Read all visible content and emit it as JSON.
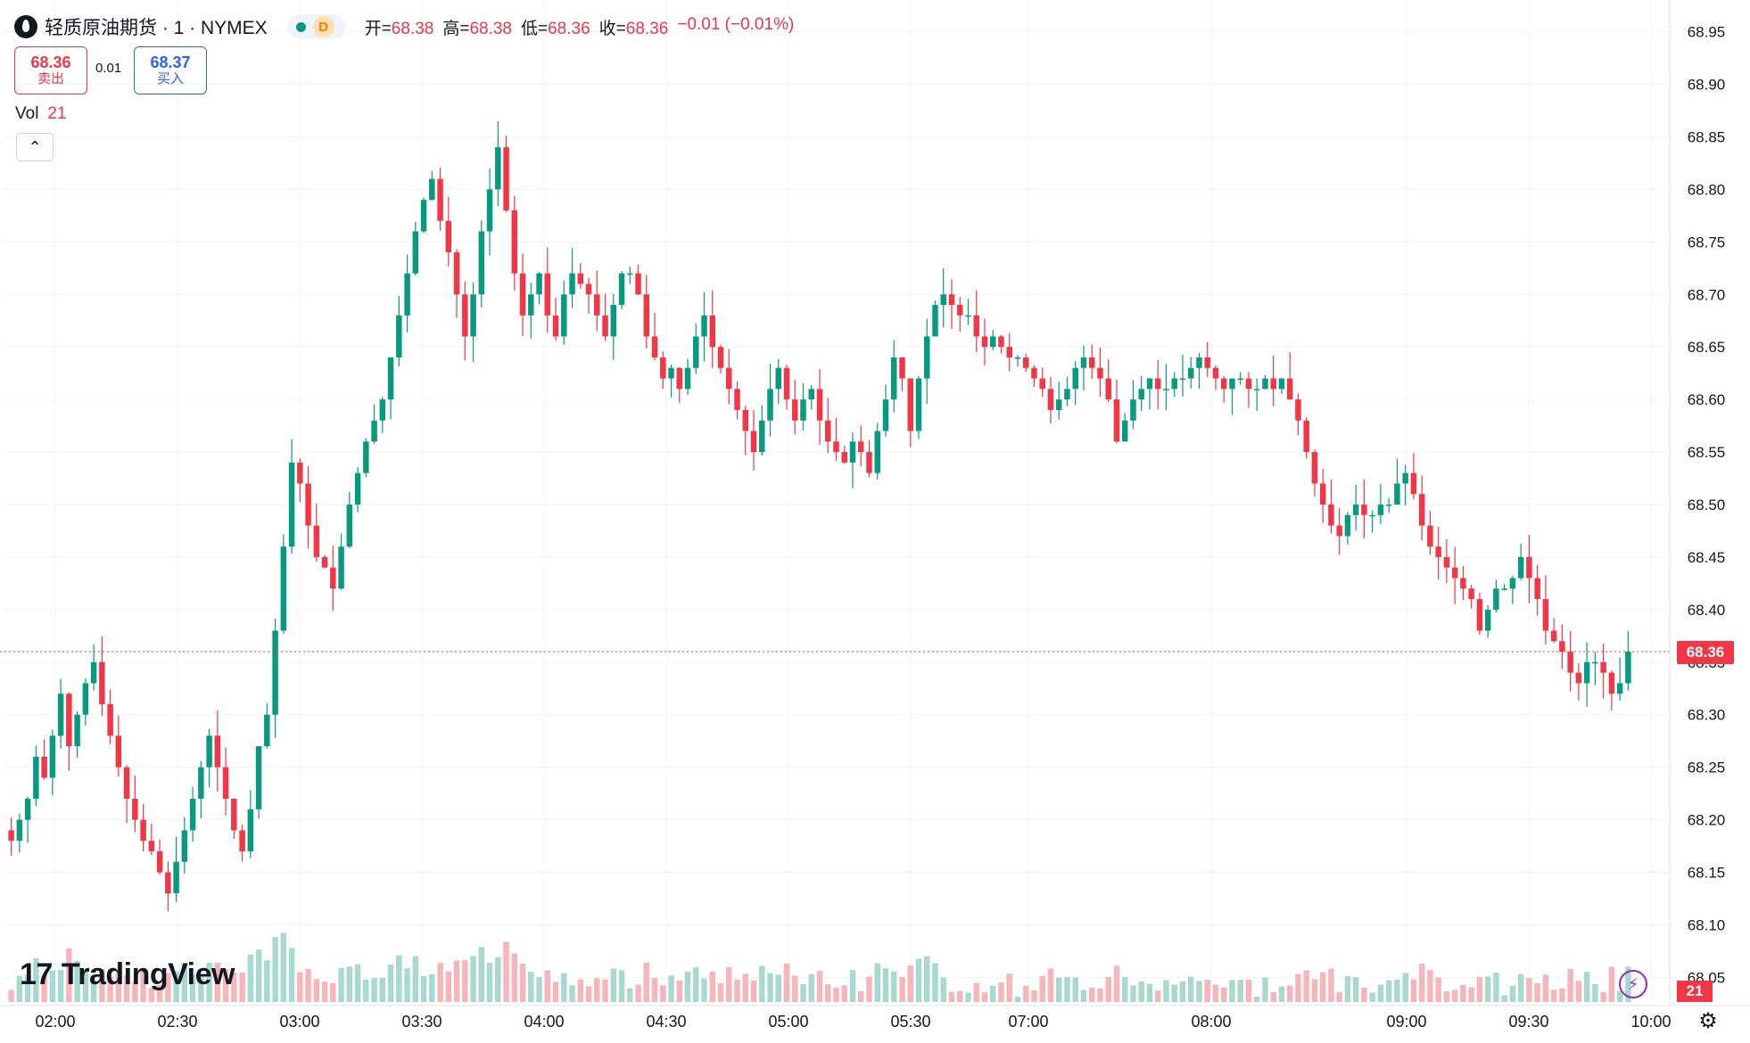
{
  "header": {
    "symbol": "轻质原油期货 · 1 · NYMEX",
    "status_letter": "D",
    "ohlc": [
      {
        "k": "开=",
        "v": "68.38"
      },
      {
        "k": "高=",
        "v": "68.38"
      },
      {
        "k": "低=",
        "v": "68.36"
      },
      {
        "k": "收=",
        "v": "68.36"
      }
    ],
    "change": "−0.01 (−0.01%)"
  },
  "trade": {
    "sell_price": "68.36",
    "sell_label": "卖出",
    "spread": "0.01",
    "buy_price": "68.37",
    "buy_label": "买入"
  },
  "volume_legend": {
    "label": "Vol",
    "value": "21"
  },
  "brand": "TradingView",
  "last_price_tag": "68.36",
  "volume_tag": "21",
  "colors": {
    "up": "#089981",
    "down": "#f23645",
    "up_vol": "#a8d9d1",
    "down_vol": "#f7b5b9",
    "grid": "#f0f3fa"
  },
  "chart_data": {
    "type": "candlestick",
    "y_ticks": [
      "68.05",
      "68.10",
      "68.15",
      "68.20",
      "68.25",
      "68.30",
      "68.35",
      "68.40",
      "68.45",
      "68.50",
      "68.55",
      "68.60",
      "68.65",
      "68.70",
      "68.75",
      "68.80",
      "68.85",
      "68.90",
      "68.95"
    ],
    "x_ticks": [
      "02:00",
      "02:30",
      "03:00",
      "03:30",
      "04:00",
      "04:30",
      "05:00",
      "05:30",
      "07:00",
      "08:00",
      "09:00",
      "09:30",
      "10:00"
    ],
    "ylim": [
      68.03,
      68.97
    ],
    "last_price": 68.36,
    "grid": true,
    "candles": [
      68.18,
      68.2,
      68.22,
      68.26,
      68.24,
      68.28,
      68.32,
      68.27,
      68.3,
      68.33,
      68.35,
      68.31,
      68.28,
      68.25,
      68.22,
      68.2,
      68.18,
      68.17,
      68.15,
      68.13,
      68.16,
      68.19,
      68.22,
      68.25,
      68.28,
      68.25,
      68.22,
      68.19,
      68.17,
      68.21,
      68.27,
      68.3,
      68.38,
      68.46,
      68.54,
      68.52,
      68.48,
      68.45,
      68.44,
      68.42,
      68.46,
      68.5,
      68.53,
      68.56,
      68.58,
      68.6,
      68.64,
      68.68,
      68.72,
      68.76,
      68.79,
      68.81,
      68.77,
      68.74,
      68.7,
      68.66,
      68.7,
      68.76,
      68.8,
      68.84,
      68.78,
      68.72,
      68.68,
      68.7,
      68.72,
      68.68,
      68.66,
      68.7,
      68.72,
      68.71,
      68.7,
      68.68,
      68.66,
      68.69,
      68.72,
      68.72,
      68.7,
      68.66,
      68.64,
      68.62,
      68.63,
      68.61,
      68.63,
      68.66,
      68.68,
      68.65,
      68.63,
      68.61,
      68.59,
      68.57,
      68.55,
      68.58,
      68.61,
      68.63,
      68.6,
      68.58,
      68.6,
      68.61,
      68.58,
      68.56,
      68.55,
      68.54,
      68.56,
      68.55,
      68.53,
      68.57,
      68.6,
      68.64,
      68.62,
      68.57,
      68.62,
      68.66,
      68.69,
      68.7,
      68.69,
      68.68,
      68.68,
      68.66,
      68.65,
      68.66,
      68.65,
      68.64,
      68.64,
      68.63,
      68.62,
      68.61,
      68.59,
      68.6,
      68.61,
      68.63,
      68.64,
      68.63,
      68.62,
      68.6,
      68.56,
      68.58,
      68.6,
      68.61,
      68.62,
      68.61,
      68.61,
      68.62,
      68.62,
      68.63,
      68.64,
      68.63,
      68.62,
      68.61,
      68.62,
      68.62,
      68.61,
      68.61,
      68.62,
      68.61,
      68.62,
      68.6,
      68.58,
      68.55,
      68.52,
      68.5,
      68.48,
      68.47,
      68.49,
      68.5,
      68.49,
      68.49,
      68.5,
      68.5,
      68.52,
      68.53,
      68.51,
      68.48,
      68.46,
      68.45,
      68.44,
      68.43,
      68.42,
      68.41,
      68.38,
      68.4,
      68.42,
      68.42,
      68.43,
      68.45,
      68.43,
      68.41,
      68.38,
      68.37,
      68.36,
      68.34,
      68.33,
      68.35,
      68.35,
      68.34,
      68.32,
      68.33,
      68.36
    ]
  }
}
